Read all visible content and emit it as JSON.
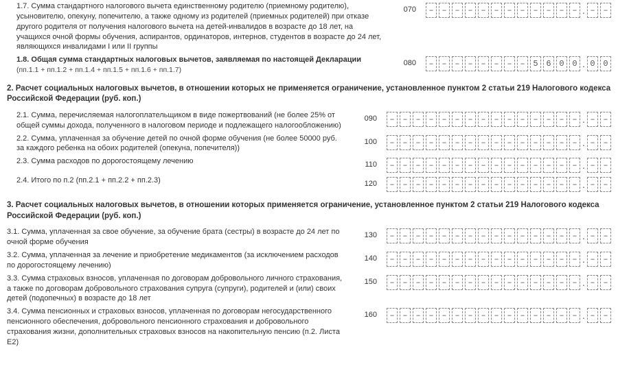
{
  "rows17": {
    "desc": "1.7. Сумма стандартного налогового вычета единственному родителю (приемному родителю), усыновителю, опекуну, попечителю, а также одному из родителей (приемных родителей) при отказе другого родителя от получения налогового вычета на детей-инвалидов в возрасте до 18 лет, на учащихся очной формы обучения, аспирантов, ординаторов, интернов, студентов в возрасте до 24 лет, являющихся инвалидами I или II группы",
    "code": "070"
  },
  "rows18": {
    "desc": "1.8. Общая сумма стандартных налоговых вычетов, заявляемая по настоящей Декларации",
    "sub": "(пп.1.1 + пп.1.2 + пп.1.4 + пп.1.5 + пп.1.6 + пп.1.7)",
    "code": "080"
  },
  "sec2": "2. Расчет социальных налоговых вычетов, в отношении которых не применяется ограничение, установленное пунктом 2 статьи 219 Налогового кодекса Российской Федерации (руб. коп.)",
  "rows21": {
    "desc": "2.1. Сумма, перечисляемая налогоплательщиком в виде пожертвований (не более 25% от общей суммы дохода, полученного в налоговом периоде и подлежащего налогообложению)",
    "code": "090"
  },
  "rows22": {
    "desc": "2.2. Сумма, уплаченная за обучение детей по очной форме обучения (не более 50000 руб. за каждого ребенка на обоих родителей (опекуна, попечителя))",
    "code": "100"
  },
  "rows23": {
    "desc": "2.3. Сумма расходов по дорогостоящему лечению",
    "code": "110"
  },
  "rows24": {
    "desc": "2.4. Итого по п.2 (пп.2.1 + пп.2.2 + пп.2.3)",
    "code": "120"
  },
  "sec3": "3. Расчет социальных налоговых вычетов, в отношении которых применяется ограничение, установленное пунктом 2 статьи 219 Налогового кодекса Российской Федерации (руб. коп.)",
  "rows31": {
    "desc": "3.1. Сумма, уплаченная за свое обучение, за обучение брата (сестры) в возрасте до 24 лет по очной форме обучения",
    "code": "130"
  },
  "rows32": {
    "desc": "3.2. Сумма, уплаченная за лечение и приобретение медикаментов (за исключением расходов по дорогостоящему лечению)",
    "code": "140"
  },
  "rows33": {
    "desc": "3.3. Сумма страховых взносов, уплаченная по договорам добровольного личного страхования, а также по договорам добровольного страхования супруга (супруги), родителей и (или) своих детей (подопечных) в возрасте до 18 лет",
    "code": "150"
  },
  "rows34": {
    "desc": "3.4. Сумма пенсионных и страховых взносов, уплаченная по договорам негосударственного пенсионного обеспечения, добровольного пенсионного страхования и добровольного страхования жизни, дополнительных страховых взносов на накопительную пенсию (п.2. Листа Е2)",
    "code": "160"
  },
  "field070": {
    "int": [
      "–",
      "–",
      "–",
      "–",
      "–",
      "–",
      "–",
      "–",
      "–",
      "–",
      "–",
      "–"
    ],
    "dec": [
      "–",
      "–"
    ]
  },
  "field080": {
    "int": [
      "–",
      "–",
      "–",
      "–",
      "–",
      "–",
      "–",
      "–",
      "5",
      "6",
      "0",
      "0"
    ],
    "dec": [
      "0",
      "0"
    ]
  },
  "blank12": {
    "int": [
      "–",
      "–",
      "–",
      "–",
      "–",
      "–",
      "–",
      "–",
      "–",
      "–",
      "–",
      "–"
    ],
    "dec": [
      "–",
      "–"
    ]
  },
  "blank15": {
    "int": [
      "–",
      "–",
      "–",
      "–",
      "–",
      "–",
      "–",
      "–",
      "–",
      "–",
      "–",
      "–",
      "–",
      "–",
      "–"
    ],
    "dec": [
      "–",
      "–"
    ]
  },
  "colors": {
    "border": "#888",
    "text": "#333",
    "dash": "#555"
  }
}
